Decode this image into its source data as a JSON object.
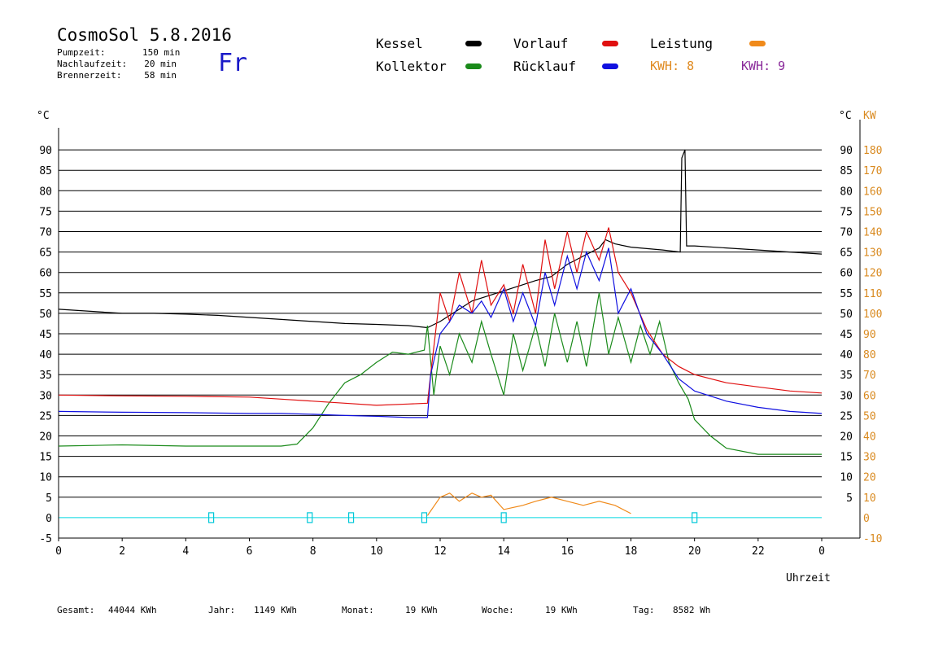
{
  "header": {
    "title": "CosmoSol 5.8.2016",
    "day": "Fr",
    "info": [
      {
        "label": "Pumpzeit:",
        "value": "150 min"
      },
      {
        "label": "Nachlaufzeit:",
        "value": "20 min"
      },
      {
        "label": "Brennerzeit:",
        "value": "58 min"
      }
    ]
  },
  "legend": {
    "kessel": {
      "label": "Kessel",
      "color": "#000000"
    },
    "kollektor": {
      "label": "Kollektor",
      "color": "#1a8a1a"
    },
    "vorlauf": {
      "label": "Vorlauf",
      "color": "#e01010"
    },
    "ruecklauf": {
      "label": "Rücklauf",
      "color": "#1010e0"
    },
    "leistung": {
      "label": "Leistung",
      "color": "#f08a1a"
    },
    "kwh8": "KWH: 8",
    "kwh9": "KWH: 9",
    "kwh8_color": "#e08a20",
    "kwh9_color": "#8a2a9a"
  },
  "footer": {
    "gesamt_label": "Gesamt:",
    "gesamt_value": "44044 KWh",
    "jahr_label": "Jahr:",
    "jahr_value": "1149 KWh",
    "monat_label": "Monat:",
    "monat_value": "19 KWh",
    "woche_label": "Woche:",
    "woche_value": "19 KWh",
    "tag_label": "Tag:",
    "tag_value": "8582 Wh"
  },
  "chart_data": {
    "type": "line",
    "xlabel": "Uhrzeit",
    "ylabel_left": "°C",
    "ylabel_right": "KW",
    "xlim": [
      0,
      24
    ],
    "ylim": [
      -5,
      95
    ],
    "ylim_right": [
      -10,
      190
    ],
    "x_ticks": [
      "0",
      "2",
      "4",
      "6",
      "8",
      "10",
      "12",
      "14",
      "16",
      "18",
      "20",
      "22",
      "0"
    ],
    "y_ticks_left": [
      "-5",
      "0",
      "5",
      "10",
      "15",
      "20",
      "25",
      "30",
      "35",
      "40",
      "45",
      "50",
      "55",
      "60",
      "65",
      "70",
      "75",
      "80",
      "85",
      "90"
    ],
    "y_ticks_right_c": [
      "5",
      "10",
      "15",
      "20",
      "25",
      "30",
      "35",
      "40",
      "45",
      "50",
      "55",
      "60",
      "65",
      "70",
      "75",
      "80",
      "85",
      "90"
    ],
    "y_ticks_right_kw": [
      "-10",
      "0",
      "10",
      "20",
      "30",
      "40",
      "50",
      "60",
      "70",
      "80",
      "90",
      "100",
      "110",
      "120",
      "130",
      "140",
      "150",
      "160",
      "170",
      "180"
    ],
    "grid": true,
    "series": [
      {
        "name": "Kessel",
        "color": "#000000",
        "x": [
          0,
          1,
          2,
          3,
          4,
          5,
          6,
          7,
          8,
          9,
          10,
          11,
          11.6,
          12,
          13,
          14,
          15,
          15.5,
          16,
          16.5,
          17,
          17.2,
          17.5,
          18,
          19,
          19.55,
          19.6,
          19.7,
          19.75,
          20,
          21,
          22,
          23,
          24
        ],
        "y": [
          51,
          50.5,
          50,
          50,
          49.8,
          49.5,
          49,
          48.5,
          48,
          47.5,
          47.3,
          47,
          46.5,
          48,
          53,
          55.5,
          58,
          59,
          62,
          64,
          66,
          68,
          67,
          66.2,
          65.5,
          65,
          88,
          90,
          66.5,
          66.5,
          66,
          65.5,
          65,
          64.5
        ]
      },
      {
        "name": "Kollektor",
        "color": "#1a8a1a",
        "x": [
          0,
          2,
          4,
          6,
          7,
          7.5,
          8,
          8.5,
          9,
          9.5,
          10,
          10.5,
          11,
          11.5,
          11.6,
          11.8,
          12,
          12.3,
          12.6,
          13,
          13.3,
          13.6,
          14,
          14.3,
          14.6,
          15,
          15.3,
          15.6,
          16,
          16.3,
          16.6,
          17,
          17.3,
          17.6,
          18,
          18.3,
          18.6,
          18.9,
          19.2,
          19.5,
          19.8,
          20,
          20.5,
          21,
          22,
          23,
          24
        ],
        "y": [
          17.5,
          17.8,
          17.5,
          17.5,
          17.5,
          18,
          22,
          28,
          33,
          35,
          38,
          40.5,
          40,
          41,
          47,
          30,
          42,
          35,
          45,
          38,
          48,
          40,
          30,
          45,
          36,
          47,
          37,
          50,
          38,
          48,
          37,
          55,
          40,
          49,
          38,
          47,
          40,
          48,
          38,
          33,
          29,
          24,
          20,
          17,
          15.5,
          15.5,
          15.5
        ]
      },
      {
        "name": "Vorlauf",
        "color": "#e01010",
        "x": [
          0,
          2,
          4,
          6,
          7,
          8,
          9,
          10,
          11,
          11.6,
          11.7,
          12,
          12.3,
          12.6,
          13,
          13.3,
          13.6,
          14,
          14.3,
          14.6,
          15,
          15.3,
          15.6,
          16,
          16.3,
          16.6,
          17,
          17.3,
          17.6,
          18,
          18.5,
          19,
          19.5,
          20,
          21,
          22,
          23,
          24
        ],
        "y": [
          30,
          29.8,
          29.7,
          29.5,
          29,
          28.5,
          28,
          27.5,
          27.8,
          28,
          35,
          55,
          48,
          60,
          50,
          63,
          52,
          57,
          50,
          62,
          50,
          68,
          56,
          70,
          60,
          70,
          63,
          71,
          60,
          55,
          46,
          40,
          37,
          35,
          33,
          32,
          31,
          30.5
        ]
      },
      {
        "name": "Rücklauf",
        "color": "#1010e0",
        "x": [
          0,
          2,
          4,
          6,
          7,
          8,
          9,
          10,
          11,
          11.6,
          11.7,
          12,
          12.3,
          12.6,
          13,
          13.3,
          13.6,
          14,
          14.3,
          14.6,
          15,
          15.3,
          15.6,
          16,
          16.3,
          16.6,
          17,
          17.3,
          17.6,
          18,
          18.5,
          19,
          19.5,
          20,
          21,
          22,
          23,
          24
        ],
        "y": [
          26,
          25.8,
          25.7,
          25.5,
          25.5,
          25.3,
          25,
          24.8,
          24.5,
          24.5,
          35,
          45,
          48,
          52,
          50,
          53,
          49,
          56,
          48,
          55,
          47,
          60,
          52,
          64,
          56,
          65,
          58,
          66,
          50,
          56,
          45,
          40,
          34,
          31,
          28.5,
          27,
          26,
          25.5
        ]
      },
      {
        "name": "Leistung",
        "color": "#f08a1a",
        "x": [
          11.6,
          12,
          12.3,
          12.6,
          13,
          13.3,
          13.6,
          14,
          14.6,
          15,
          15.5,
          16,
          16.5,
          17,
          17.5,
          18
        ],
        "y": [
          0.5,
          5,
          6,
          4,
          6,
          5,
          5.5,
          2,
          3,
          4,
          5,
          4,
          3,
          4,
          3,
          1
        ]
      }
    ]
  }
}
